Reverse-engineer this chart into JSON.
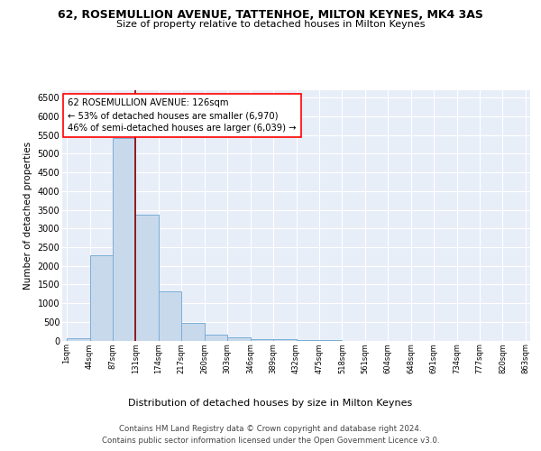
{
  "title": "62, ROSEMULLION AVENUE, TATTENHOE, MILTON KEYNES, MK4 3AS",
  "subtitle": "Size of property relative to detached houses in Milton Keynes",
  "xlabel": "Distribution of detached houses by size in Milton Keynes",
  "ylabel": "Number of detached properties",
  "footer_line1": "Contains HM Land Registry data © Crown copyright and database right 2024.",
  "footer_line2": "Contains public sector information licensed under the Open Government Licence v3.0.",
  "bin_labels": [
    "1sqm",
    "44sqm",
    "87sqm",
    "131sqm",
    "174sqm",
    "217sqm",
    "260sqm",
    "303sqm",
    "346sqm",
    "389sqm",
    "432sqm",
    "475sqm",
    "518sqm",
    "561sqm",
    "604sqm",
    "648sqm",
    "691sqm",
    "734sqm",
    "777sqm",
    "820sqm",
    "863sqm"
  ],
  "bar_values": [
    70,
    2270,
    5430,
    3380,
    1310,
    480,
    165,
    80,
    40,
    30,
    15,
    8,
    0,
    0,
    0,
    0,
    0,
    0,
    0,
    0
  ],
  "bar_color": "#c9d9ec",
  "bar_edge_color": "#7aaed6",
  "annotation_line1": "62 ROSEMULLION AVENUE: 126sqm",
  "annotation_line2": "← 53% of detached houses are smaller (6,970)",
  "annotation_line3": "46% of semi-detached houses are larger (6,039) →",
  "vline_x_index": 3,
  "vline_color": "#8b0000",
  "ylim": [
    0,
    6700
  ],
  "yticks": [
    0,
    500,
    1000,
    1500,
    2000,
    2500,
    3000,
    3500,
    4000,
    4500,
    5000,
    5500,
    6000,
    6500
  ],
  "background_color": "#e8eef8",
  "grid_color": "#ffffff"
}
